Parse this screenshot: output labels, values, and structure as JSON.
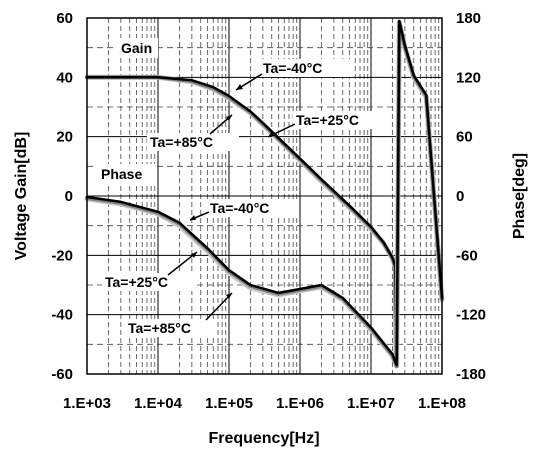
{
  "chart_data": {
    "type": "line",
    "xlabel": "Frequency[Hz]",
    "ylabel_left": "Voltage Gain[dB]",
    "ylabel_right": "Phase[deg]",
    "x_scale": "log",
    "xlim": [
      1000,
      100000000
    ],
    "ylim_left": [
      -60,
      60
    ],
    "ylim_right": [
      -180,
      180
    ],
    "x_ticks": [
      {
        "value": 1000,
        "label": "1.E+03"
      },
      {
        "value": 10000,
        "label": "1.E+04"
      },
      {
        "value": 100000,
        "label": "1.E+05"
      },
      {
        "value": 1000000,
        "label": "1.E+06"
      },
      {
        "value": 10000000,
        "label": "1.E+07"
      },
      {
        "value": 100000000,
        "label": "1.E+08"
      }
    ],
    "y_ticks_left": [
      {
        "value": 60,
        "label": "60"
      },
      {
        "value": 40,
        "label": "40"
      },
      {
        "value": 20,
        "label": "20"
      },
      {
        "value": 0,
        "label": "0"
      },
      {
        "value": -20,
        "label": "-20"
      },
      {
        "value": -40,
        "label": "-40"
      },
      {
        "value": -60,
        "label": "-60"
      }
    ],
    "y_ticks_right": [
      {
        "value": 180,
        "label": "180"
      },
      {
        "value": 120,
        "label": "120"
      },
      {
        "value": 60,
        "label": "60"
      },
      {
        "value": 0,
        "label": "0"
      },
      {
        "value": -60,
        "label": "-60"
      },
      {
        "value": -120,
        "label": "-120"
      },
      {
        "value": -180,
        "label": "-180"
      }
    ],
    "grid": true,
    "series": [
      {
        "name": "Gain Ta=+85°C",
        "axis": "left",
        "color": "#c8c8c8",
        "width": 5,
        "x": [
          1000,
          3000,
          10000,
          30000,
          60000,
          100000,
          200000,
          300000,
          500000,
          1000000,
          2000000,
          5000000,
          10000000,
          15000000,
          20000000,
          22000000,
          22500000
        ],
        "y": [
          40,
          40,
          40,
          38.5,
          36,
          33,
          28,
          24,
          19,
          12,
          5,
          -4,
          -11,
          -16,
          -21,
          -24,
          -55
        ]
      },
      {
        "name": "Gain Ta=+25°C",
        "axis": "left",
        "color": "#808080",
        "width": 4,
        "x": [
          1000,
          3000,
          10000,
          30000,
          60000,
          100000,
          200000,
          300000,
          500000,
          1000000,
          2000000,
          5000000,
          10000000,
          15000000,
          20000000,
          22000000,
          22500000
        ],
        "y": [
          40,
          40,
          40,
          38.7,
          36.3,
          33.3,
          28.2,
          24.3,
          19.2,
          12.3,
          5.3,
          -3.6,
          -10.7,
          -15.8,
          -20.9,
          -23.8,
          -55
        ]
      },
      {
        "name": "Gain Ta=-40°C",
        "axis": "left",
        "color": "#000000",
        "width": 2.5,
        "x": [
          1000,
          3000,
          10000,
          30000,
          60000,
          100000,
          200000,
          300000,
          500000,
          1000000,
          2000000,
          5000000,
          10000000,
          15000000,
          20000000,
          22000000,
          22500000
        ],
        "y": [
          40,
          40,
          40,
          39,
          36.7,
          33.7,
          28.5,
          24.6,
          19.5,
          12.6,
          5.6,
          -3.3,
          -10.4,
          -15.6,
          -20.8,
          -23.6,
          -55
        ]
      },
      {
        "name": "Phase Ta=+85°C",
        "axis": "right",
        "color": "#c8c8c8",
        "width": 5,
        "x": [
          1000,
          3000,
          10000,
          20000,
          50000,
          100000,
          200000,
          500000,
          1000000,
          2000000,
          4000000,
          10000000,
          20000000,
          23000000,
          25000000,
          30000000,
          40000000,
          60000000,
          100000000
        ],
        "y": [
          -3,
          -8,
          -18,
          -30,
          -56,
          -78,
          -93,
          -100,
          -96,
          -92,
          -105,
          -135,
          -162,
          -172,
          175,
          150,
          120,
          100,
          -105
        ]
      },
      {
        "name": "Phase Ta=+25°C",
        "axis": "right",
        "color": "#808080",
        "width": 4,
        "x": [
          1000,
          3000,
          10000,
          20000,
          50000,
          100000,
          200000,
          500000,
          1000000,
          2000000,
          4000000,
          10000000,
          20000000,
          23000000,
          25000000,
          30000000,
          40000000,
          60000000,
          100000000
        ],
        "y": [
          -2,
          -7,
          -17,
          -28,
          -54,
          -76,
          -91,
          -99,
          -95,
          -91,
          -104,
          -134,
          -161,
          -172,
          176,
          151,
          121,
          101,
          -104
        ]
      },
      {
        "name": "Phase Ta=-40°C",
        "axis": "right",
        "color": "#000000",
        "width": 2.5,
        "x": [
          1000,
          3000,
          10000,
          20000,
          50000,
          100000,
          200000,
          500000,
          1000000,
          2000000,
          4000000,
          10000000,
          20000000,
          23000000,
          25000000,
          30000000,
          40000000,
          60000000,
          100000000
        ],
        "y": [
          -1,
          -6,
          -16,
          -27,
          -53,
          -75,
          -90,
          -98,
          -94,
          -90,
          -103,
          -133,
          -160,
          -171,
          177,
          152,
          122,
          102,
          -103
        ]
      }
    ],
    "annotations": {
      "gain_label": "Gain",
      "phase_label": "Phase",
      "gain_m40": "Ta=-40°C",
      "gain_p25": "Ta=+25°C",
      "gain_p85": "Ta=+85°C",
      "phase_m40": "Ta=-40°C",
      "phase_p25": "Ta=+25°C",
      "phase_p85": "Ta=+85°C"
    }
  }
}
